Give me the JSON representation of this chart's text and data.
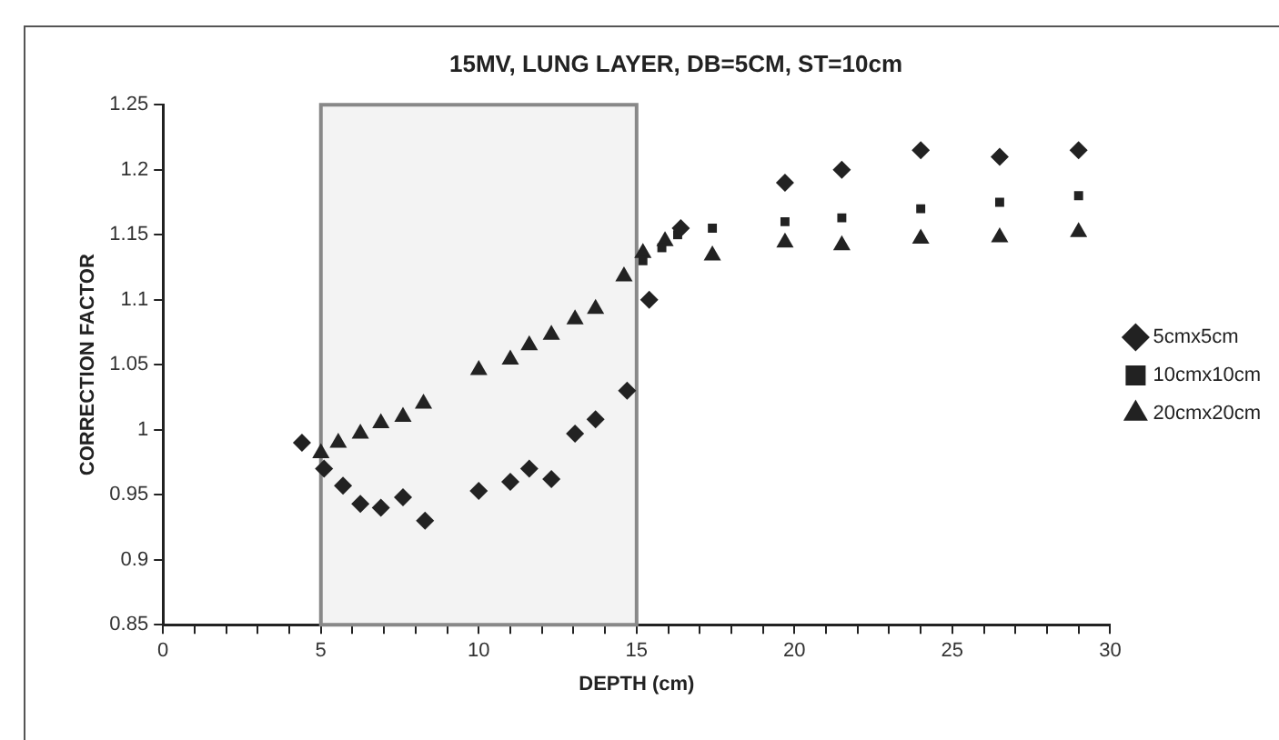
{
  "chart_data": {
    "type": "scatter",
    "title": "15MV, LUNG LAYER, DB=5CM, ST=10cm",
    "xlabel": "DEPTH (cm)",
    "ylabel": "CORRECTION FACTOR",
    "xlim": [
      0,
      30
    ],
    "xticks": [
      0,
      {
        "value": 1,
        "label": null
      },
      {
        "value": 2,
        "label": null
      },
      {
        "value": 3,
        "label": null
      },
      {
        "value": 4,
        "label": null
      },
      5,
      {
        "value": 6,
        "label": null
      },
      {
        "value": 7,
        "label": null
      },
      {
        "value": 8,
        "label": null
      },
      {
        "value": 9,
        "label": null
      },
      10,
      {
        "value": 11,
        "label": null
      },
      {
        "value": 12,
        "label": null
      },
      {
        "value": 13,
        "label": null
      },
      {
        "value": 14,
        "label": null
      },
      15,
      {
        "value": 16,
        "label": null
      },
      {
        "value": 17,
        "label": null
      },
      {
        "value": 18,
        "label": null
      },
      {
        "value": 19,
        "label": null
      },
      20,
      {
        "value": 21,
        "label": null
      },
      {
        "value": 22,
        "label": null
      },
      {
        "value": 23,
        "label": null
      },
      {
        "value": 24,
        "label": null
      },
      25,
      {
        "value": 26,
        "label": null
      },
      {
        "value": 27,
        "label": null
      },
      {
        "value": 28,
        "label": null
      },
      {
        "value": 29,
        "label": null
      },
      30
    ],
    "ylim": [
      0.85,
      1.25
    ],
    "yticks": [
      0.85,
      0.9,
      0.95,
      1,
      1.05,
      1.1,
      1.15,
      1.2,
      1.25
    ],
    "grid": false,
    "legend": "right",
    "bands": [
      {
        "axis": "x",
        "from": 5,
        "to": 15,
        "color": "#f3f3f3"
      }
    ],
    "series": [
      {
        "name": "5cmx5cm",
        "color": "#222222",
        "marker": "diamond",
        "x": [
          4.4,
          5.1,
          5.7,
          6.25,
          6.9,
          7.6,
          8.3,
          10.0,
          11.0,
          11.6,
          12.3,
          13.05,
          13.7,
          14.7,
          15.4,
          16.4,
          19.7,
          21.5,
          24,
          26.5,
          29
        ],
        "values": [
          0.99,
          0.97,
          0.957,
          0.943,
          0.94,
          0.948,
          0.93,
          0.953,
          0.96,
          0.97,
          0.962,
          0.997,
          1.008,
          1.03,
          1.1,
          1.155,
          1.19,
          1.2,
          1.215,
          1.21,
          1.215
        ]
      },
      {
        "name": "10cmx10cm",
        "color": "#222222",
        "marker": "square",
        "x": [
          15.2,
          15.8,
          16.3,
          17.4,
          19.7,
          21.5,
          24,
          26.5,
          29
        ],
        "values": [
          1.13,
          1.14,
          1.15,
          1.155,
          1.16,
          1.163,
          1.17,
          1.175,
          1.18
        ]
      },
      {
        "name": "20cmx20cm",
        "color": "#222222",
        "marker": "triangle",
        "x": [
          5.0,
          5.55,
          6.25,
          6.9,
          7.6,
          8.25,
          10.0,
          11.0,
          11.6,
          12.3,
          13.05,
          13.7,
          14.6,
          15.2,
          15.9,
          17.4,
          19.7,
          21.5,
          24,
          26.5,
          29
        ],
        "values": [
          0.982,
          0.99,
          0.997,
          1.005,
          1.01,
          1.02,
          1.046,
          1.054,
          1.065,
          1.073,
          1.085,
          1.093,
          1.118,
          1.136,
          1.145,
          1.134,
          1.144,
          1.142,
          1.147,
          1.148,
          1.152
        ]
      }
    ]
  }
}
